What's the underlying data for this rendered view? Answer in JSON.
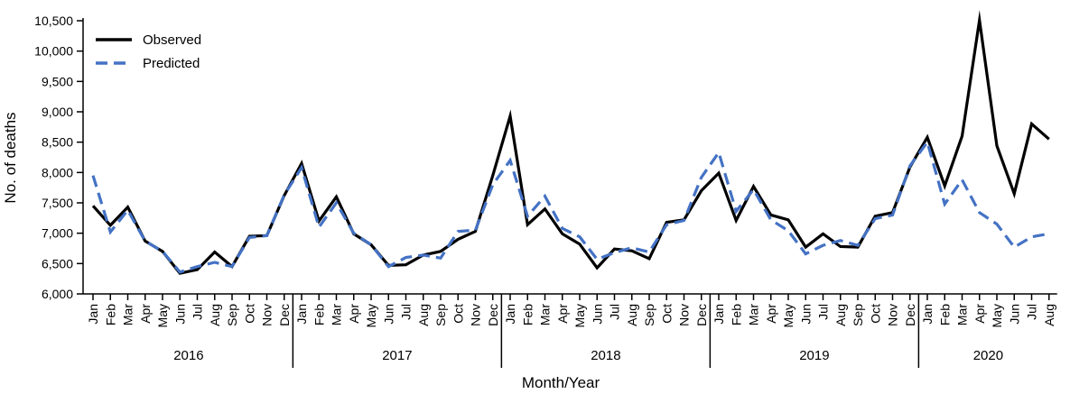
{
  "chart_data": {
    "type": "line",
    "xlabel": "Month/Year",
    "ylabel": "No. of deaths",
    "ylim": [
      6000,
      10500
    ],
    "yticks": [
      6000,
      6500,
      7000,
      7500,
      8000,
      8500,
      9000,
      9500,
      10000,
      10500
    ],
    "ytick_labels": [
      "6,000",
      "6,500",
      "7,000",
      "7,500",
      "8,000",
      "8,500",
      "9,000",
      "9,500",
      "10,000",
      "10,500"
    ],
    "grid": false,
    "legend_position": "top-left",
    "months": [
      "Jan",
      "Feb",
      "Mar",
      "Apr",
      "May",
      "Jun",
      "Jul",
      "Aug",
      "Sep",
      "Oct",
      "Nov",
      "Dec",
      "Jan",
      "Feb",
      "Mar",
      "Apr",
      "May",
      "Jun",
      "Jul",
      "Aug",
      "Sep",
      "Oct",
      "Nov",
      "Dec",
      "Jan",
      "Feb",
      "Mar",
      "Apr",
      "May",
      "Jun",
      "Jul",
      "Aug",
      "Sep",
      "Oct",
      "Nov",
      "Dec",
      "Jan",
      "Feb",
      "Mar",
      "Apr",
      "May",
      "Jun",
      "Jul",
      "Aug",
      "Sep",
      "Oct",
      "Nov",
      "Dec",
      "Jan",
      "Feb",
      "Mar",
      "Apr",
      "May",
      "Jun",
      "Jul",
      "Aug"
    ],
    "years": [
      {
        "label": "2016",
        "start": 0,
        "count": 12
      },
      {
        "label": "2017",
        "start": 12,
        "count": 12
      },
      {
        "label": "2018",
        "start": 24,
        "count": 12
      },
      {
        "label": "2019",
        "start": 36,
        "count": 12
      },
      {
        "label": "2020",
        "start": 48,
        "count": 8
      }
    ],
    "series": [
      {
        "name": "Observed",
        "color": "#000000",
        "dash": "solid",
        "values": [
          7450,
          7130,
          7430,
          6870,
          6700,
          6340,
          6400,
          6690,
          6450,
          6950,
          6960,
          7620,
          8150,
          7200,
          7600,
          6990,
          6810,
          6470,
          6480,
          6640,
          6700,
          6900,
          7030,
          7950,
          8930,
          7140,
          7400,
          6990,
          6820,
          6430,
          6740,
          6710,
          6580,
          7180,
          7220,
          7700,
          7990,
          7210,
          7770,
          7300,
          7220,
          6770,
          6990,
          6780,
          6770,
          7280,
          7340,
          8090,
          8580,
          7780,
          8600,
          10510,
          8440,
          7650,
          8800,
          8550
        ]
      },
      {
        "name": "Predicted",
        "color": "#4472c4",
        "dash": "dashed",
        "values": [
          7950,
          7020,
          7380,
          6870,
          6700,
          6360,
          6450,
          6520,
          6450,
          6930,
          6960,
          7630,
          8080,
          7100,
          7500,
          7000,
          6810,
          6450,
          6600,
          6640,
          6590,
          7030,
          7050,
          7800,
          8200,
          7280,
          7610,
          7080,
          6940,
          6570,
          6680,
          6760,
          6690,
          7140,
          7210,
          7920,
          8330,
          7360,
          7720,
          7220,
          7040,
          6660,
          6800,
          6880,
          6800,
          7240,
          7300,
          8110,
          8500,
          7480,
          7880,
          7340,
          7150,
          6770,
          6940,
          6990
        ]
      }
    ]
  }
}
